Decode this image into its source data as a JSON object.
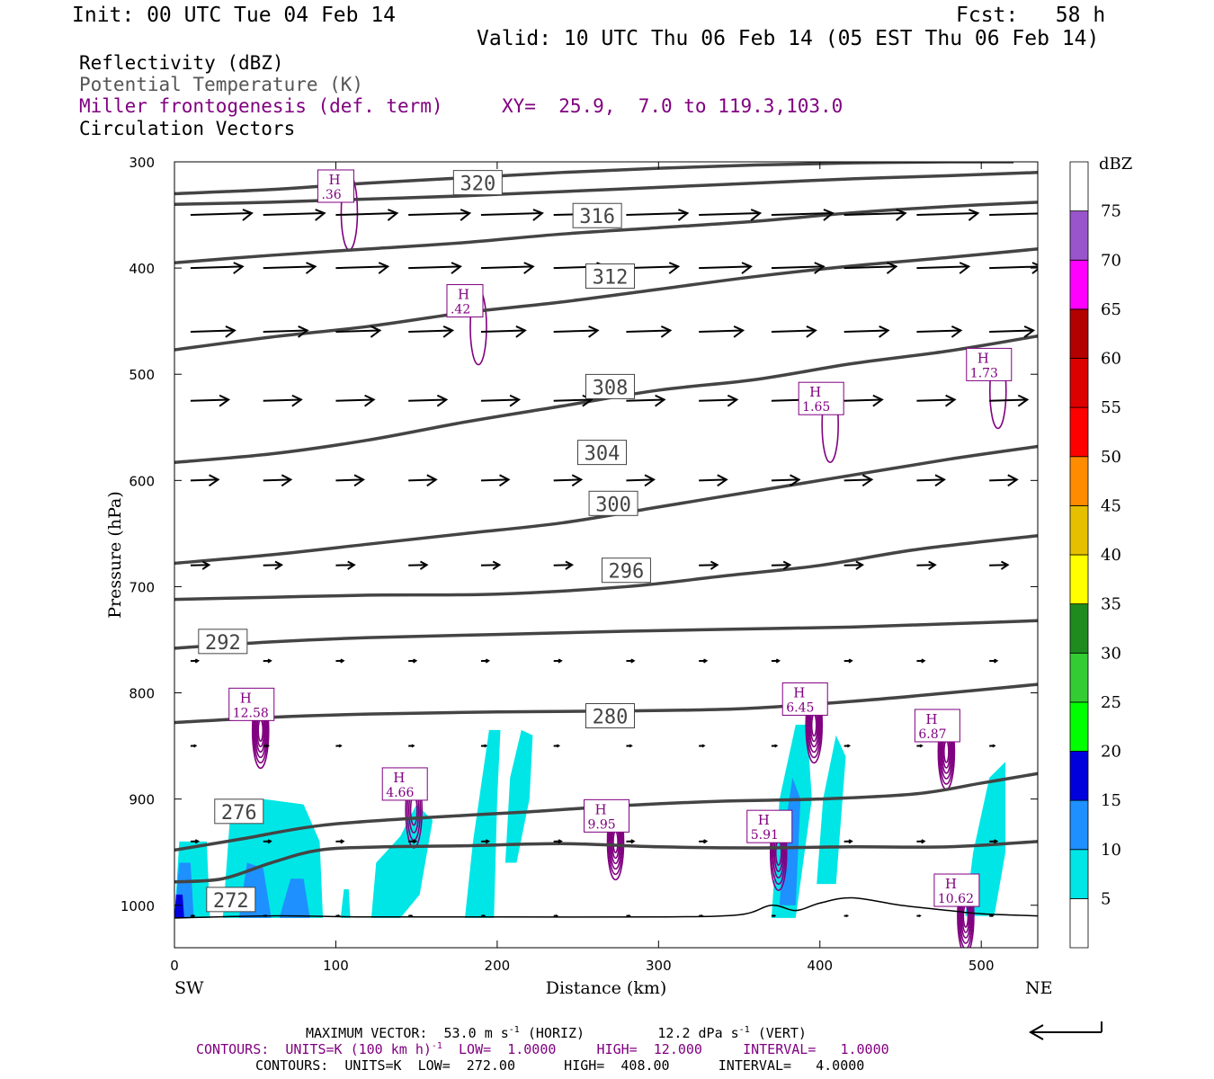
{
  "header": {
    "init": "Init: 00 UTC Tue 04 Feb 14",
    "fcst": "Fcst:   58 h",
    "valid": "Valid: 10 UTC Thu 06 Feb 14 (05 EST Thu 06 Feb 14)",
    "fields": {
      "reflectivity": "Reflectivity (dBZ)",
      "theta": "Potential Temperature (K)",
      "frontogenesis": "Miller frontogenesis (def. term)",
      "xy": "XY=  25.9,  7.0 to 119.3,103.0",
      "vectors": "Circulation Vectors"
    }
  },
  "footer": {
    "max_vector_label": "MAXIMUM VECTOR:",
    "max_horiz_value": "53.0",
    "max_horiz_unit": "m s",
    "max_horiz_exp": "-1",
    "max_horiz_tag": "(HORIZ)",
    "max_vert_value": "12.2",
    "max_vert_unit": "dPa s",
    "max_vert_exp": "-1",
    "max_vert_tag": "(VERT)",
    "contours_fgen_a": "CONTOURS:  UNITS=K (100 km h)",
    "contours_fgen_exp": "-1",
    "contours_fgen_b": "  LOW=  1.0000     HIGH=  12.000     INTERVAL=   1.0000",
    "contours_theta": "CONTOURS:  UNITS=K  LOW=  272.00      HIGH=  408.00      INTERVAL=   4.0000"
  },
  "chart_data": {
    "type": "cross-section",
    "xlabel": "Distance (km)",
    "ylabel": "Pressure (hPa)",
    "x_ticks": [
      0,
      100,
      200,
      300,
      400,
      500
    ],
    "y_ticks": [
      300,
      400,
      500,
      600,
      700,
      800,
      900,
      1000
    ],
    "xlim": [
      0,
      535
    ],
    "ylim": [
      1040,
      300
    ],
    "endpoint_left": "SW",
    "endpoint_right": "NE",
    "colorbar": {
      "label": "dBZ",
      "ticks": [
        5,
        10,
        15,
        20,
        25,
        30,
        35,
        40,
        45,
        50,
        55,
        60,
        65,
        70,
        75
      ],
      "colors": [
        "#ffffff",
        "#00e6e6",
        "#1e90ff",
        "#0000dd",
        "#00ff00",
        "#33cc33",
        "#1f8b1f",
        "#ffff00",
        "#e6c000",
        "#ff8c00",
        "#ff0000",
        "#dd0000",
        "#b30000",
        "#ff00ff",
        "#9955cc",
        "#ffffff"
      ]
    },
    "theta_isentropes": [
      {
        "value": 272,
        "points": [
          [
            0,
            978
          ],
          [
            30,
            975
          ],
          [
            60,
            960
          ],
          [
            90,
            948
          ],
          [
            130,
            945
          ],
          [
            180,
            944
          ],
          [
            240,
            942
          ],
          [
            300,
            945
          ],
          [
            360,
            946
          ],
          [
            420,
            945
          ],
          [
            480,
            945
          ],
          [
            535,
            940
          ]
        ],
        "label": {
          "x": 35,
          "p": 995
        }
      },
      {
        "value": 276,
        "points": [
          [
            0,
            948
          ],
          [
            40,
            938
          ],
          [
            90,
            925
          ],
          [
            150,
            918
          ],
          [
            220,
            912
          ],
          [
            280,
            906
          ],
          [
            340,
            902
          ],
          [
            400,
            900
          ],
          [
            460,
            895
          ],
          [
            500,
            885
          ],
          [
            535,
            876
          ]
        ],
        "label": {
          "x": 40,
          "p": 912
        }
      },
      {
        "value": 280,
        "points": [
          [
            0,
            828
          ],
          [
            60,
            823
          ],
          [
            120,
            820
          ],
          [
            200,
            818
          ],
          [
            280,
            817
          ],
          [
            350,
            815
          ],
          [
            420,
            808
          ],
          [
            480,
            800
          ],
          [
            535,
            792
          ]
        ],
        "label": {
          "x": 270,
          "p": 822
        }
      },
      {
        "value": 292,
        "points": [
          [
            0,
            758
          ],
          [
            60,
            752
          ],
          [
            120,
            748
          ],
          [
            200,
            745
          ],
          [
            280,
            742
          ],
          [
            350,
            740
          ],
          [
            420,
            738
          ],
          [
            480,
            735
          ],
          [
            535,
            732
          ]
        ],
        "label": {
          "x": 30,
          "p": 752
        }
      },
      {
        "value": 296,
        "points": [
          [
            0,
            712
          ],
          [
            60,
            710
          ],
          [
            120,
            708
          ],
          [
            200,
            707
          ],
          [
            280,
            700
          ],
          [
            340,
            690
          ],
          [
            400,
            680
          ],
          [
            460,
            665
          ],
          [
            535,
            652
          ]
        ],
        "label": {
          "x": 280,
          "p": 685
        }
      },
      {
        "value": 300,
        "points": [
          [
            0,
            678
          ],
          [
            60,
            670
          ],
          [
            120,
            660
          ],
          [
            180,
            650
          ],
          [
            240,
            640
          ],
          [
            300,
            625
          ],
          [
            360,
            610
          ],
          [
            420,
            595
          ],
          [
            480,
            580
          ],
          [
            535,
            568
          ]
        ],
        "label": {
          "x": 272,
          "p": 622
        }
      },
      {
        "value": 304,
        "points": [
          [
            0,
            583
          ],
          [
            60,
            575
          ],
          [
            120,
            562
          ],
          [
            180,
            545
          ],
          [
            240,
            530
          ],
          [
            300,
            515
          ],
          [
            360,
            505
          ],
          [
            420,
            490
          ],
          [
            480,
            478
          ],
          [
            535,
            464
          ]
        ],
        "label": {
          "x": 265,
          "p": 574
        }
      },
      {
        "value": 308,
        "points": [
          [
            0,
            477
          ],
          [
            60,
            465
          ],
          [
            120,
            455
          ],
          [
            180,
            442
          ],
          [
            240,
            432
          ],
          [
            300,
            420
          ],
          [
            360,
            408
          ],
          [
            420,
            398
          ],
          [
            480,
            390
          ],
          [
            535,
            382
          ]
        ],
        "label": {
          "x": 270,
          "p": 512
        }
      },
      {
        "value": 312,
        "points": [
          [
            0,
            395
          ],
          [
            60,
            388
          ],
          [
            120,
            382
          ],
          [
            180,
            376
          ],
          [
            240,
            368
          ],
          [
            300,
            362
          ],
          [
            360,
            356
          ],
          [
            420,
            348
          ],
          [
            480,
            342
          ],
          [
            535,
            338
          ]
        ],
        "label": {
          "x": 270,
          "p": 408
        }
      },
      {
        "value": 316,
        "points": [
          [
            0,
            340
          ],
          [
            60,
            338
          ],
          [
            120,
            335
          ],
          [
            180,
            332
          ],
          [
            240,
            328
          ],
          [
            300,
            324
          ],
          [
            360,
            320
          ],
          [
            420,
            316
          ],
          [
            480,
            313
          ],
          [
            535,
            310
          ]
        ],
        "label": {
          "x": 262,
          "p": 351
        }
      },
      {
        "value": 320,
        "points": [
          [
            0,
            330
          ],
          [
            60,
            326
          ],
          [
            120,
            320
          ],
          [
            180,
            315
          ],
          [
            240,
            310
          ],
          [
            300,
            306
          ],
          [
            360,
            303
          ],
          [
            420,
            301
          ],
          [
            480,
            300
          ],
          [
            520,
            300
          ]
        ],
        "label": {
          "x": 188,
          "p": 320
        }
      }
    ],
    "reflectivity_cells": [
      {
        "dbz": 5,
        "polygon": [
          [
            0,
            1012
          ],
          [
            3,
            940
          ],
          [
            20,
            940
          ],
          [
            22,
            1012
          ]
        ]
      },
      {
        "dbz": 10,
        "polygon": [
          [
            0,
            1012
          ],
          [
            3,
            960
          ],
          [
            10,
            960
          ],
          [
            12,
            1012
          ]
        ]
      },
      {
        "dbz": 15,
        "polygon": [
          [
            0,
            1012
          ],
          [
            1,
            990
          ],
          [
            5,
            990
          ],
          [
            6,
            1012
          ]
        ]
      },
      {
        "dbz": 5,
        "polygon": [
          [
            30,
            1012
          ],
          [
            35,
            905
          ],
          [
            55,
            900
          ],
          [
            80,
            905
          ],
          [
            90,
            940
          ],
          [
            92,
            1012
          ]
        ]
      },
      {
        "dbz": 10,
        "polygon": [
          [
            40,
            1012
          ],
          [
            45,
            960
          ],
          [
            55,
            965
          ],
          [
            60,
            1012
          ]
        ]
      },
      {
        "dbz": 10,
        "polygon": [
          [
            65,
            1012
          ],
          [
            72,
            975
          ],
          [
            80,
            975
          ],
          [
            84,
            1012
          ]
        ]
      },
      {
        "dbz": 5,
        "polygon": [
          [
            103,
            1012
          ],
          [
            105,
            985
          ],
          [
            108,
            985
          ],
          [
            109,
            1012
          ]
        ]
      },
      {
        "dbz": 5,
        "polygon": [
          [
            122,
            1012
          ],
          [
            125,
            960
          ],
          [
            140,
            935
          ],
          [
            150,
            905
          ],
          [
            160,
            920
          ],
          [
            152,
            990
          ],
          [
            140,
            1012
          ]
        ]
      },
      {
        "dbz": 5,
        "polygon": [
          [
            180,
            1012
          ],
          [
            185,
            940
          ],
          [
            195,
            835
          ],
          [
            202,
            835
          ],
          [
            200,
            900
          ],
          [
            198,
            1012
          ]
        ]
      },
      {
        "dbz": 5,
        "polygon": [
          [
            205,
            960
          ],
          [
            208,
            880
          ],
          [
            215,
            835
          ],
          [
            222,
            840
          ],
          [
            220,
            900
          ],
          [
            212,
            960
          ]
        ]
      },
      {
        "dbz": 5,
        "polygon": [
          [
            370,
            1012
          ],
          [
            375,
            900
          ],
          [
            385,
            830
          ],
          [
            392,
            830
          ],
          [
            395,
            900
          ],
          [
            385,
            1012
          ]
        ]
      },
      {
        "dbz": 10,
        "polygon": [
          [
            375,
            1000
          ],
          [
            378,
            930
          ],
          [
            383,
            880
          ],
          [
            388,
            900
          ],
          [
            385,
            1000
          ]
        ]
      },
      {
        "dbz": 5,
        "polygon": [
          [
            398,
            980
          ],
          [
            402,
            900
          ],
          [
            410,
            840
          ],
          [
            416,
            860
          ],
          [
            410,
            980
          ]
        ]
      },
      {
        "dbz": 5,
        "polygon": [
          [
            490,
            1010
          ],
          [
            495,
            950
          ],
          [
            505,
            880
          ],
          [
            515,
            865
          ],
          [
            515,
            950
          ],
          [
            508,
            1010
          ]
        ]
      }
    ],
    "frontogenesis_maxima": [
      {
        "label": "H",
        "value": ".36",
        "x": 100,
        "p": 322
      },
      {
        "label": "H",
        "value": ".42",
        "x": 180,
        "p": 430
      },
      {
        "label": "H",
        "value": "1.65",
        "x": 398,
        "p": 522
      },
      {
        "label": "H",
        "value": "1.73",
        "x": 502,
        "p": 490
      },
      {
        "label": "H",
        "value": "12.58",
        "x": 45,
        "p": 810
      },
      {
        "label": "H",
        "value": "6.45",
        "x": 388,
        "p": 805
      },
      {
        "label": "H",
        "value": "6.87",
        "x": 470,
        "p": 830
      },
      {
        "label": "H",
        "value": "4.66",
        "x": 140,
        "p": 885
      },
      {
        "label": "H",
        "value": "9.95",
        "x": 265,
        "p": 915
      },
      {
        "label": "H",
        "value": "5.91",
        "x": 366,
        "p": 925
      },
      {
        "label": "H",
        "value": "10.62",
        "x": 482,
        "p": 985
      }
    ],
    "circulation_vectors": {
      "rows_hpa": [
        350,
        400,
        460,
        525,
        600,
        680,
        770,
        850,
        940,
        1010
      ],
      "speed_relative": [
        1.0,
        0.85,
        0.72,
        0.62,
        0.45,
        0.3,
        0.12,
        0.08,
        0.12,
        0.05
      ]
    }
  }
}
